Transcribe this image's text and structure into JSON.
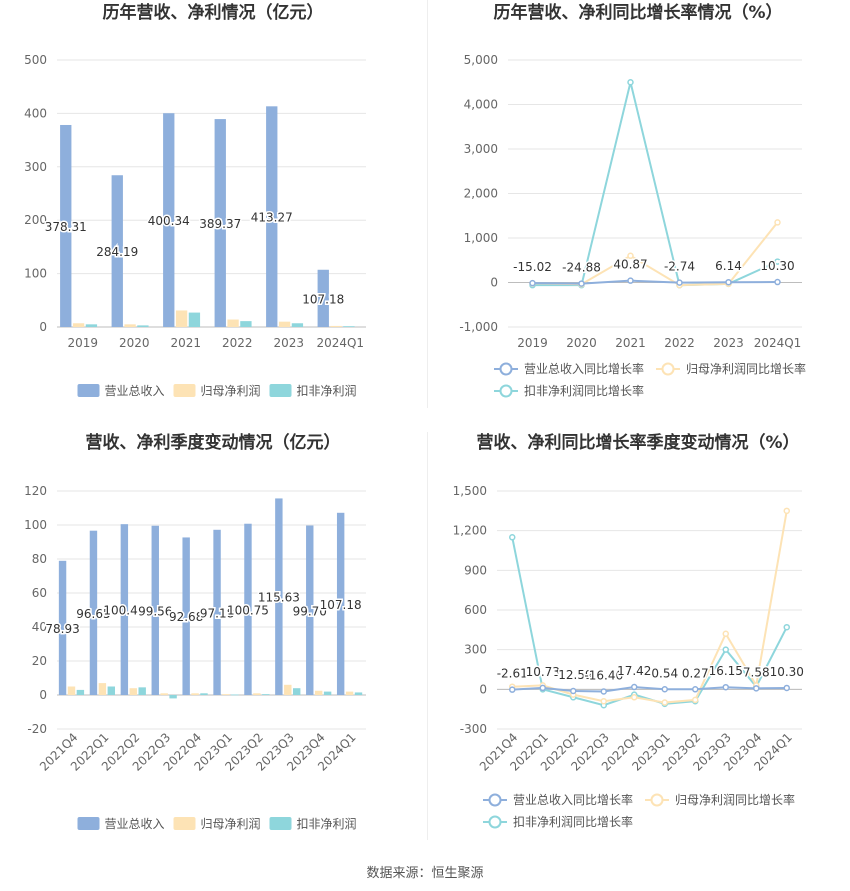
{
  "source": "数据来源：恒生聚源",
  "legends": {
    "amounts": [
      "营业总收入",
      "归母净利润",
      "扣非净利润"
    ],
    "growth": [
      "营业总收入同比增长率",
      "归母净利润同比增长率",
      "扣非净利润同比增长率"
    ]
  },
  "colors": {
    "revenue": "#8eafdc",
    "net_profit": "#fde3b5",
    "deducted_profit": "#8ed6dc",
    "grid": "#e6e6e6",
    "axis": "#bdbdbd",
    "tick_text": "#666666",
    "title_text": "#333333"
  },
  "chart_data": [
    {
      "id": "annual-amounts",
      "type": "bar",
      "title": "历年营收、净利情况（亿元）",
      "categories": [
        "2019",
        "2020",
        "2021",
        "2022",
        "2023",
        "2024Q1"
      ],
      "yticks": [
        "0",
        "100",
        "200",
        "300",
        "400",
        "500"
      ],
      "ylim": [
        0,
        500
      ],
      "grid": true,
      "legend": "bottom",
      "rotate_x": false,
      "series": [
        {
          "name": "营业总收入",
          "values": [
            378.31,
            284.19,
            400.34,
            389.37,
            413.27,
            107.18
          ],
          "labels": [
            "378.31",
            "284.19",
            "400.34",
            "389.37",
            "413.27",
            "107.18"
          ]
        },
        {
          "name": "归母净利润",
          "values": [
            7,
            5,
            31,
            14,
            10,
            2
          ]
        },
        {
          "name": "扣非净利润",
          "values": [
            5,
            3,
            27,
            11,
            7,
            1.5
          ]
        }
      ]
    },
    {
      "id": "annual-growth",
      "type": "line",
      "title": "历年营收、净利同比增长率情况（%）",
      "categories": [
        "2019",
        "2020",
        "2021",
        "2022",
        "2023",
        "2024Q1"
      ],
      "yticks": [
        "-1,000",
        "0",
        "1,000",
        "2,000",
        "3,000",
        "4,000",
        "5,000"
      ],
      "ylim": [
        -1000,
        5000
      ],
      "grid": true,
      "legend": "bottom",
      "rotate_x": false,
      "series": [
        {
          "name": "营业总收入同比增长率",
          "values": [
            -15.02,
            -24.88,
            40.87,
            -2.74,
            6.14,
            10.3
          ],
          "labels": [
            "-15.02",
            "-24.88",
            "40.87",
            "-2.74",
            "6.14",
            "10.30"
          ]
        },
        {
          "name": "归母净利润同比增长率",
          "values": [
            -20,
            -40,
            600,
            -60,
            -30,
            1350
          ]
        },
        {
          "name": "扣非净利润同比增长率",
          "values": [
            -60,
            -60,
            4500,
            -60,
            -30,
            470
          ]
        }
      ]
    },
    {
      "id": "quarterly-amounts",
      "type": "bar",
      "title": "营收、净利季度变动情况（亿元）",
      "categories": [
        "2021Q4",
        "2022Q1",
        "2022Q2",
        "2022Q3",
        "2022Q4",
        "2023Q1",
        "2023Q2",
        "2023Q3",
        "2023Q4",
        "2024Q1"
      ],
      "yticks": [
        "-20",
        "0",
        "20",
        "40",
        "60",
        "80",
        "100",
        "120"
      ],
      "ylim": [
        -20,
        120
      ],
      "grid": true,
      "legend": "bottom",
      "rotate_x": true,
      "series": [
        {
          "name": "营业总收入",
          "values": [
            78.93,
            96.65,
            100.49,
            99.56,
            92.68,
            97.18,
            100.75,
            115.63,
            99.7,
            107.18
          ],
          "labels": [
            "78.93",
            "96.65",
            "100.49",
            "99.56",
            "92.68",
            "97.18",
            "100.75",
            "115.63",
            "99.70",
            "107.18"
          ]
        },
        {
          "name": "归母净利润",
          "values": [
            5,
            7,
            4,
            1,
            1,
            0.5,
            1,
            6,
            2.5,
            2
          ]
        },
        {
          "name": "扣非净利润",
          "values": [
            3,
            5,
            4.5,
            -2,
            1,
            0.3,
            0.5,
            4,
            2,
            1.5
          ]
        }
      ]
    },
    {
      "id": "quarterly-growth",
      "type": "line",
      "title": "营收、净利同比增长率季度变动情况（%）",
      "categories": [
        "2021Q4",
        "2022Q1",
        "2022Q2",
        "2022Q3",
        "2022Q4",
        "2023Q1",
        "2023Q2",
        "2023Q3",
        "2023Q4",
        "2024Q1"
      ],
      "yticks": [
        "-300",
        "0",
        "300",
        "600",
        "900",
        "1,200",
        "1,500"
      ],
      "ylim": [
        -300,
        1500
      ],
      "grid": true,
      "legend": "bottom",
      "rotate_x": true,
      "series": [
        {
          "name": "营业总收入同比增长率",
          "values": [
            -2.61,
            10.73,
            -12.59,
            -16.46,
            17.42,
            0.54,
            0.27,
            16.15,
            7.58,
            10.3
          ],
          "labels": [
            "-2.61",
            "10.73",
            "-12.59",
            "-16.46",
            "17.42",
            "0.54",
            "0.27",
            "16.15",
            "7.58",
            "10.30"
          ]
        },
        {
          "name": "归母净利润同比增长率",
          "values": [
            20,
            30,
            -40,
            -90,
            -60,
            -100,
            -80,
            420,
            30,
            1350
          ]
        },
        {
          "name": "扣非净利润同比增长率",
          "values": [
            1150,
            0,
            -60,
            -120,
            -40,
            -110,
            -90,
            300,
            20,
            470
          ]
        }
      ]
    }
  ]
}
